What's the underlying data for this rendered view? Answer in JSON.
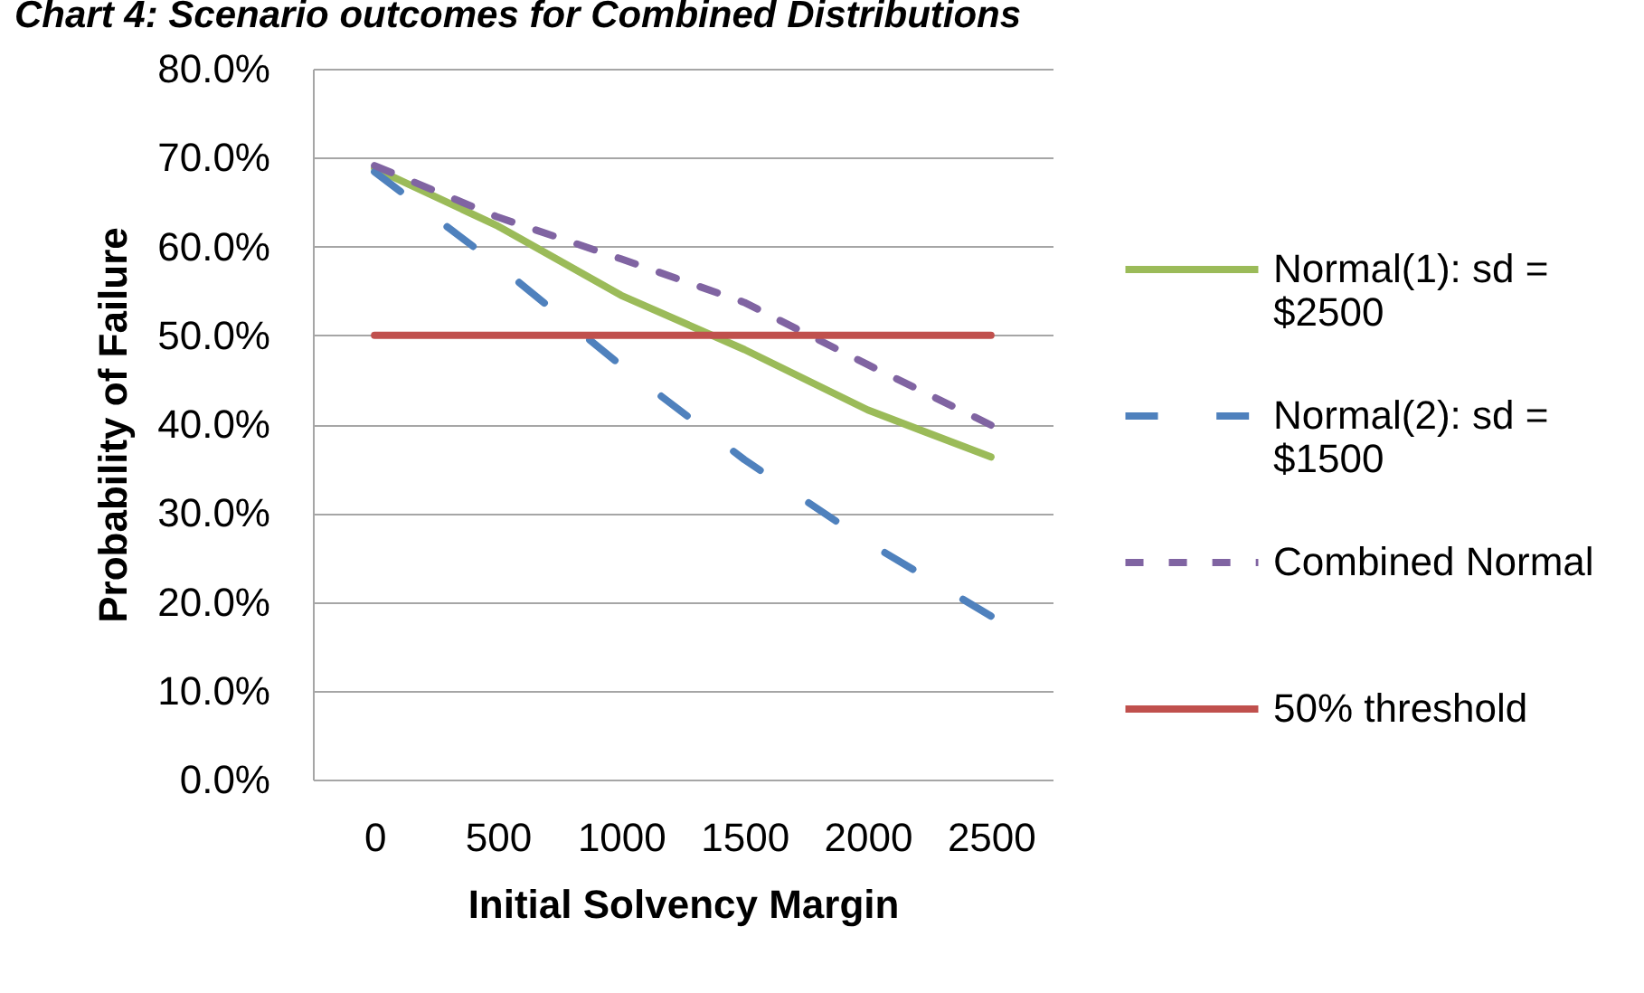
{
  "chart_data": {
    "type": "line",
    "title": "Chart 4: Scenario outcomes for Combined Distributions",
    "xlabel": "Initial Solvency Margin",
    "ylabel": "Probability of Failure",
    "categories": [
      "0",
      "500",
      "1000",
      "1500",
      "2000",
      "2500"
    ],
    "series": [
      {
        "name": "Normal(1): sd = $2500",
        "color": "#9bbb59",
        "line_style": "solid",
        "values": [
          68.8,
          62.3,
          54.5,
          48.4,
          41.6,
          36.3
        ]
      },
      {
        "name": "Normal(2): sd = $1500",
        "color": "#4f81bd",
        "line_style": "dashed",
        "values": [
          68.4,
          57.9,
          46.6,
          36.0,
          26.7,
          18.4
        ]
      },
      {
        "name": "Combined Normal",
        "color": "#8064a2",
        "line_style": "dashed",
        "values": [
          69.1,
          63.3,
          58.6,
          53.7,
          46.7,
          39.9
        ]
      },
      {
        "name": "50% threshold",
        "color": "#c0504d",
        "line_style": "solid",
        "values": [
          50,
          50,
          50,
          50,
          50,
          50
        ]
      }
    ],
    "ylim": [
      0,
      80
    ],
    "yticks": [
      {
        "value": 0,
        "label": "0.0%"
      },
      {
        "value": 10,
        "label": "10.0%"
      },
      {
        "value": 20,
        "label": "20.0%"
      },
      {
        "value": 30,
        "label": "30.0%"
      },
      {
        "value": 40,
        "label": "40.0%"
      },
      {
        "value": 50,
        "label": "50.0%"
      },
      {
        "value": 60,
        "label": "60.0%"
      },
      {
        "value": 70,
        "label": "70.0%"
      },
      {
        "value": 80,
        "label": "80.0%"
      }
    ],
    "grid": "y",
    "legend": "right"
  }
}
